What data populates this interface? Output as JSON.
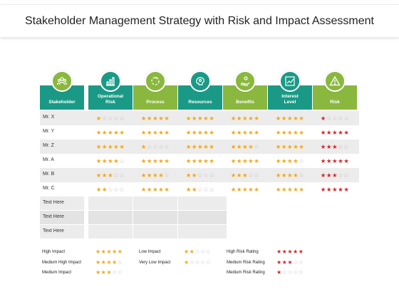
{
  "title": "Stakeholder Management Strategy with Risk and Impact Assessment",
  "headers": [
    {
      "label": "Stakeholder",
      "icon": "people-icon"
    },
    {
      "label": "Operational Risk",
      "icon": "chart-growth-icon"
    },
    {
      "label": "Process",
      "icon": "cycle-icon"
    },
    {
      "label": "Resources",
      "icon": "brain-gears-icon"
    },
    {
      "label": "Benefits",
      "icon": "hand-coin-icon"
    },
    {
      "label": "Interest Level",
      "icon": "rising-chart-icon"
    },
    {
      "label": "Risk",
      "icon": "warning-icon"
    }
  ],
  "stakeholders": [
    {
      "name": "Mr. X",
      "ratings": [
        1,
        5,
        5,
        5,
        5
      ],
      "risk": 1
    },
    {
      "name": "Mr. Y",
      "ratings": [
        5,
        5,
        5,
        5,
        5
      ],
      "risk": 5
    },
    {
      "name": "Mr. Z",
      "ratings": [
        5,
        1,
        5,
        4,
        5
      ],
      "risk": 3
    },
    {
      "name": "Mr. A",
      "ratings": [
        4,
        5,
        5,
        5,
        4
      ],
      "risk": 5
    },
    {
      "name": "Mr. B",
      "ratings": [
        3,
        4,
        2,
        3,
        4
      ],
      "risk": 3
    },
    {
      "name": "Mr. C",
      "ratings": [
        2,
        5,
        2,
        5,
        5
      ],
      "risk": 5
    }
  ],
  "text_rows": [
    "Text Here",
    "Text Here",
    "Text Here"
  ],
  "legend": [
    {
      "label": "High Impact",
      "stars": 5,
      "color": "orange"
    },
    {
      "label": "Medium High Impact",
      "stars": 4,
      "color": "orange"
    },
    {
      "label": "Medium Impact",
      "stars": 3,
      "color": "orange"
    },
    {
      "label": "Low Impact",
      "stars": 2,
      "color": "orange"
    },
    {
      "label": "Very Low Impact",
      "stars": 1,
      "color": "orange"
    },
    {
      "label": "High Risk Rating",
      "stars": 5,
      "color": "red"
    },
    {
      "label": "Medium Risk Rating",
      "stars": 3,
      "color": "red"
    },
    {
      "label": "Medium Risk Rating",
      "stars": 1,
      "color": "red"
    }
  ],
  "colors": {
    "green": "#8ab83f",
    "teal": "#1a9a86",
    "star": "#f2a71b",
    "risk_star": "#d0262a",
    "empty_star": "#bdbdbd"
  }
}
